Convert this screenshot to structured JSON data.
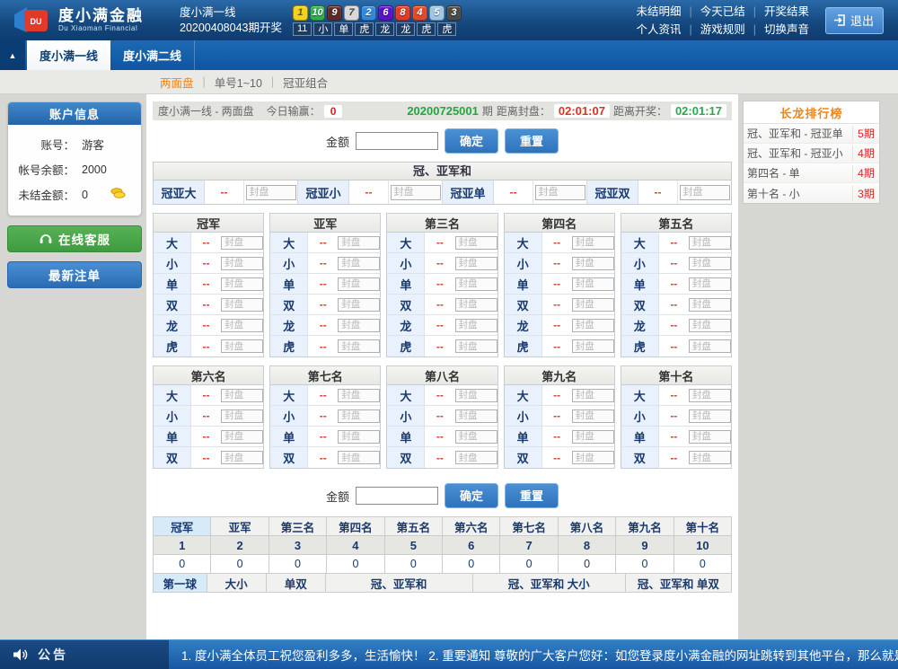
{
  "header": {
    "logo": {
      "title": "度小满金融",
      "subtitle": "Du Xiaoman Financial",
      "badge": "DU"
    },
    "draw": {
      "line_name": "度小满一线",
      "issue_label": "20200408043期开奖",
      "balls": [
        {
          "n": "1",
          "bg": "#f2d31b",
          "fg": "#6b4e00"
        },
        {
          "n": "10",
          "bg": "#2fae4f",
          "fg": "#ffffff"
        },
        {
          "n": "9",
          "bg": "#5c2a2a",
          "fg": "#ffffff"
        },
        {
          "n": "7",
          "bg": "#d8d8d8",
          "fg": "#444444"
        },
        {
          "n": "2",
          "bg": "#3388dd",
          "fg": "#ffffff"
        },
        {
          "n": "6",
          "bg": "#5a11cc",
          "fg": "#ffffff"
        },
        {
          "n": "8",
          "bg": "#e03a2a",
          "fg": "#ffffff"
        },
        {
          "n": "4",
          "bg": "#e0492a",
          "fg": "#ffffff"
        },
        {
          "n": "5",
          "bg": "#9fc6e8",
          "fg": "#ffffff"
        },
        {
          "n": "3",
          "bg": "#4a4a48",
          "fg": "#ffffff"
        }
      ],
      "results": [
        "11",
        "小",
        "单",
        "虎",
        "龙",
        "龙",
        "虎",
        "虎"
      ]
    },
    "links_row1": [
      "未结明细",
      "今天已结",
      "开奖结果"
    ],
    "links_row2": [
      "个人资讯",
      "游戏规则",
      "切换声音"
    ],
    "logout": "退出"
  },
  "tabs": {
    "items": [
      {
        "label": "度小满一线",
        "active": true
      },
      {
        "label": "度小满二线",
        "active": false
      }
    ]
  },
  "subnav": {
    "items": [
      {
        "label": "两面盘",
        "active": true
      },
      {
        "label": "单号1~10",
        "active": false
      },
      {
        "label": "冠亚组合",
        "active": false
      }
    ]
  },
  "sidebar": {
    "account_header": "账户信息",
    "fields": [
      {
        "label": "账号：",
        "value": "游客"
      },
      {
        "label": "帐号余额：",
        "value": "2000"
      },
      {
        "label": "未结金额：",
        "value": "0"
      }
    ],
    "service_button": "在线客服",
    "orders_button": "最新注单"
  },
  "main": {
    "status": {
      "title": "度小满一线 - 两面盘",
      "win_label": "今日输赢：",
      "win_value": "0",
      "period": "20200725001",
      "period_suffix": "期",
      "close_label": "距离封盘：",
      "close_time": "02:01:07",
      "open_label": "距离开奖：",
      "open_time": "02:01:17"
    },
    "amount": {
      "label": "金额",
      "confirm": "确定",
      "reset": "重置"
    },
    "sum_section": {
      "title": "冠、亚军和",
      "odds": "--",
      "placeholder": "封盘",
      "cells": [
        {
          "name": "冠亚大"
        },
        {
          "name": "冠亚小"
        },
        {
          "name": "冠亚单"
        },
        {
          "name": "冠亚双"
        }
      ]
    },
    "groups1": {
      "titles": [
        "冠军",
        "亚军",
        "第三名",
        "第四名",
        "第五名"
      ],
      "rows": [
        "大",
        "小",
        "单",
        "双",
        "龙",
        "虎"
      ],
      "odds": "--",
      "placeholder": "封盘"
    },
    "groups2": {
      "titles": [
        "第六名",
        "第七名",
        "第八名",
        "第九名",
        "第十名"
      ],
      "rows": [
        "大",
        "小",
        "单",
        "双"
      ],
      "odds": "--",
      "placeholder": "封盘"
    },
    "results_table": {
      "tabs": [
        "冠军",
        "亚军",
        "第三名",
        "第四名",
        "第五名",
        "第六名",
        "第七名",
        "第八名",
        "第九名",
        "第十名"
      ],
      "numbers": [
        "1",
        "2",
        "3",
        "4",
        "5",
        "6",
        "7",
        "8",
        "9",
        "10"
      ],
      "values": [
        "0",
        "0",
        "0",
        "0",
        "0",
        "0",
        "0",
        "0",
        "0",
        "0"
      ],
      "bottom_tabs": [
        "第一球",
        "大小",
        "单双",
        "冠、亚军和",
        "冠、亚军和 大小",
        "冠、亚军和 单双"
      ]
    }
  },
  "ranking": {
    "title": "长龙排行榜",
    "rows": [
      {
        "name": "冠、亚军和 - 冠亚单",
        "count": "5期"
      },
      {
        "name": "冠、亚军和 - 冠亚小",
        "count": "4期"
      },
      {
        "name": "第四名 - 单",
        "count": "4期"
      },
      {
        "name": "第十名 - 小",
        "count": "3期"
      }
    ]
  },
  "marquee": {
    "label": "公告",
    "text": "1. 度小满全体员工祝您盈利多多，生活愉快！ 2. 重要通知 尊敬的广大客户您好：如您登录度小满金融的网址跳转到其他平台，那么就是您本地的DNS被电信商强行劫持到黑庄，非常危险"
  }
}
